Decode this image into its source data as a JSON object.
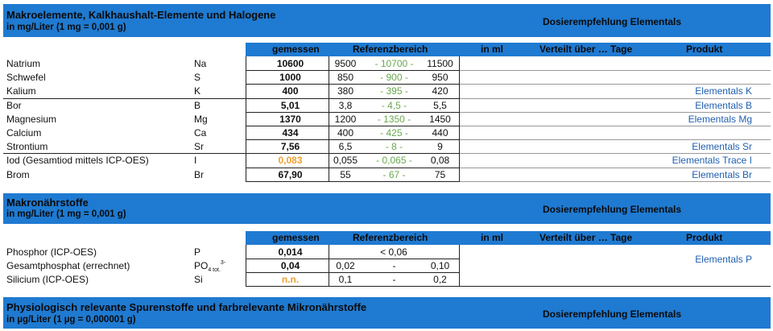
{
  "sec1": {
    "title": "Makroelemente, Kalkhaushalt-Elemente und Halogene",
    "subtitle": "in mg/Liter (1 mg = 0,001 g)",
    "recommend": "Dosierempfehlung Elementals"
  },
  "header": {
    "measured": "gemessen",
    "reference": "Referenzbereich",
    "in_ml": "in ml",
    "days": "Verteilt über … Tage",
    "product": "Produkt"
  },
  "rows1": [
    {
      "name": "Natrium",
      "sym": "Na",
      "meas": "10600",
      "lo": "9500",
      "mid": "- 10700 -",
      "hi": "11500",
      "prod": ""
    },
    {
      "name": "Schwefel",
      "sym": "S",
      "meas": "1000",
      "lo": "850",
      "mid": "- 900 -",
      "hi": "950",
      "prod": ""
    },
    {
      "name": "Kalium",
      "sym": "K",
      "meas": "400",
      "lo": "380",
      "mid": "- 395 -",
      "hi": "420",
      "prod": "Elementals K"
    },
    {
      "name": "Bor",
      "sym": "B",
      "meas": "5,01",
      "lo": "3,8",
      "mid": "- 4,5 -",
      "hi": "5,5",
      "prod": "Elementals B"
    },
    {
      "name": "Magnesium",
      "sym": "Mg",
      "meas": "1370",
      "lo": "1200",
      "mid": "- 1350 -",
      "hi": "1450",
      "prod": "Elementals Mg"
    },
    {
      "name": "Calcium",
      "sym": "Ca",
      "meas": "434",
      "lo": "400",
      "mid": "- 425 -",
      "hi": "440",
      "prod": ""
    },
    {
      "name": "Strontium",
      "sym": "Sr",
      "meas": "7,56",
      "lo": "6,5",
      "mid": "- 8 -",
      "hi": "9",
      "prod": "Elementals Sr"
    },
    {
      "name": "Iod (Gesamtiod mittels ICP-OES)",
      "sym": "I",
      "meas": "0,083",
      "lo": "0,055",
      "mid": "- 0,065 -",
      "hi": "0,08",
      "prod": "Elementals Trace I"
    },
    {
      "name": "Brom",
      "sym": "Br",
      "meas": "67,90",
      "lo": "55",
      "mid": "- 67 -",
      "hi": "75",
      "prod": "Elementals Br"
    }
  ],
  "sec2": {
    "title": "Makronährstoffe",
    "subtitle": "in mg/Liter (1 mg = 0,001 g)",
    "recommend": "Dosierempfehlung Elementals"
  },
  "rows2": [
    {
      "name": "Phosphor (ICP-OES)",
      "sym": "P",
      "meas": "0,014",
      "ref": "< 0,06",
      "prod": "Elementals P"
    },
    {
      "name": "Gesamtphosphat (errechnet)",
      "sym": "PO",
      "sym_sup": "3-",
      "sym_sub": "4 tot.",
      "meas": "0,04",
      "lo": "0,02",
      "mid": "-",
      "hi": "0,10"
    },
    {
      "name": "Silicium (ICP-OES)",
      "sym": "Si",
      "meas": "n.n.",
      "lo": "0,1",
      "mid": "-",
      "hi": "0,2"
    }
  ],
  "sec3": {
    "title": "Physiologisch relevante Spurenstoffe und farbrelevante Mikronährstoffe",
    "subtitle": "in µg/Liter (1 µg = 0,000001 g)",
    "recommend": "Dosierempfehlung Elementals"
  }
}
